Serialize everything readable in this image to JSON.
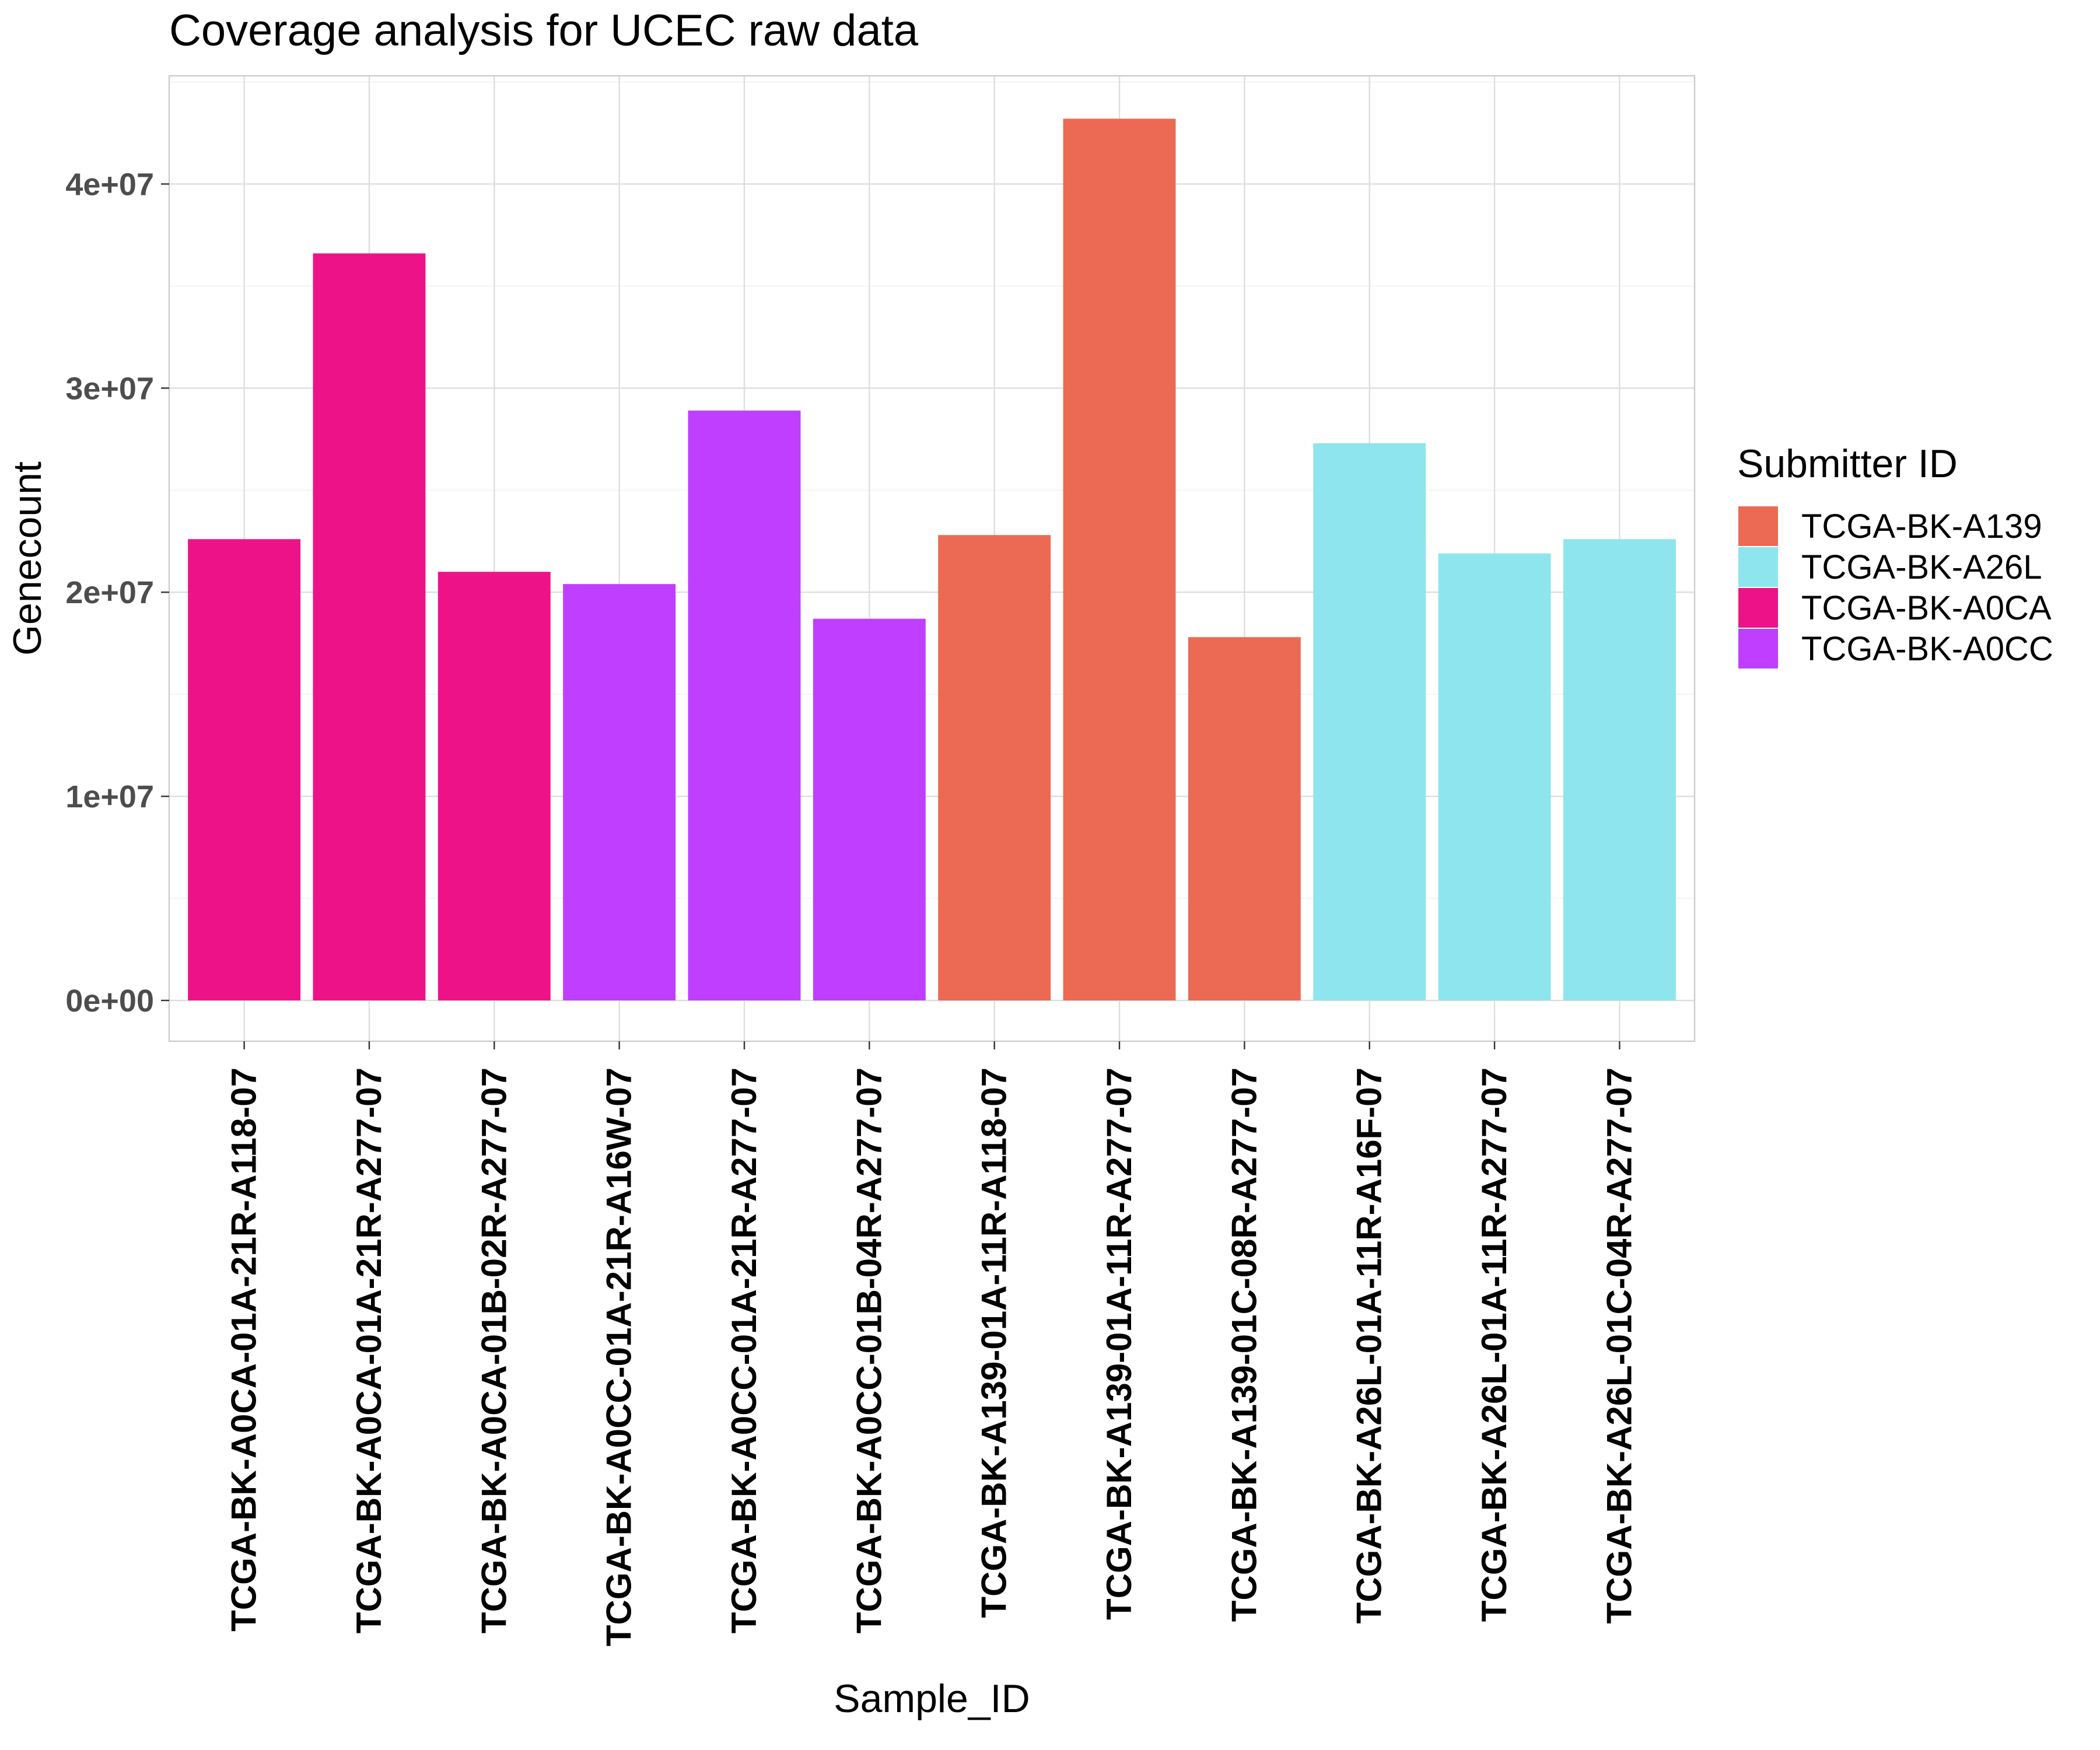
{
  "chart_data": {
    "type": "bar",
    "title": "Coverage analysis for UCEC raw data",
    "xlabel": "Sample_ID",
    "ylabel": "Genecount",
    "ylim": [
      -2000000,
      45300000
    ],
    "y_ticks": [
      0,
      10000000,
      20000000,
      30000000,
      40000000
    ],
    "y_tick_labels": [
      "0e+00",
      "1e+07",
      "2e+07",
      "3e+07",
      "4e+07"
    ],
    "grid": true,
    "legend": {
      "title": "Submitter ID",
      "placement": "right",
      "entries": [
        {
          "name": "TCGA-BK-A139",
          "color": "#ec6a53"
        },
        {
          "name": "TCGA-BK-A26L",
          "color": "#8ee5ee"
        },
        {
          "name": "TCGA-BK-A0CA",
          "color": "#ee1289"
        },
        {
          "name": "TCGA-BK-A0CC",
          "color": "#bf3eff"
        }
      ]
    },
    "categories": [
      "TCGA-BK-A0CA-01A-21R-A118-07",
      "TCGA-BK-A0CA-01A-21R-A277-07",
      "TCGA-BK-A0CA-01B-02R-A277-07",
      "TCGA-BK-A0CC-01A-21R-A16W-07",
      "TCGA-BK-A0CC-01A-21R-A277-07",
      "TCGA-BK-A0CC-01B-04R-A277-07",
      "TCGA-BK-A139-01A-11R-A118-07",
      "TCGA-BK-A139-01A-11R-A277-07",
      "TCGA-BK-A139-01C-08R-A277-07",
      "TCGA-BK-A26L-01A-11R-A16F-07",
      "TCGA-BK-A26L-01A-11R-A277-07",
      "TCGA-BK-A26L-01C-04R-A277-07"
    ],
    "values": [
      22600000,
      36600000,
      21000000,
      20400000,
      28900000,
      18700000,
      22800000,
      43200000,
      17800000,
      27300000,
      21900000,
      22600000
    ],
    "groups": [
      "TCGA-BK-A0CA",
      "TCGA-BK-A0CA",
      "TCGA-BK-A0CA",
      "TCGA-BK-A0CC",
      "TCGA-BK-A0CC",
      "TCGA-BK-A0CC",
      "TCGA-BK-A139",
      "TCGA-BK-A139",
      "TCGA-BK-A139",
      "TCGA-BK-A26L",
      "TCGA-BK-A26L",
      "TCGA-BK-A26L"
    ]
  }
}
